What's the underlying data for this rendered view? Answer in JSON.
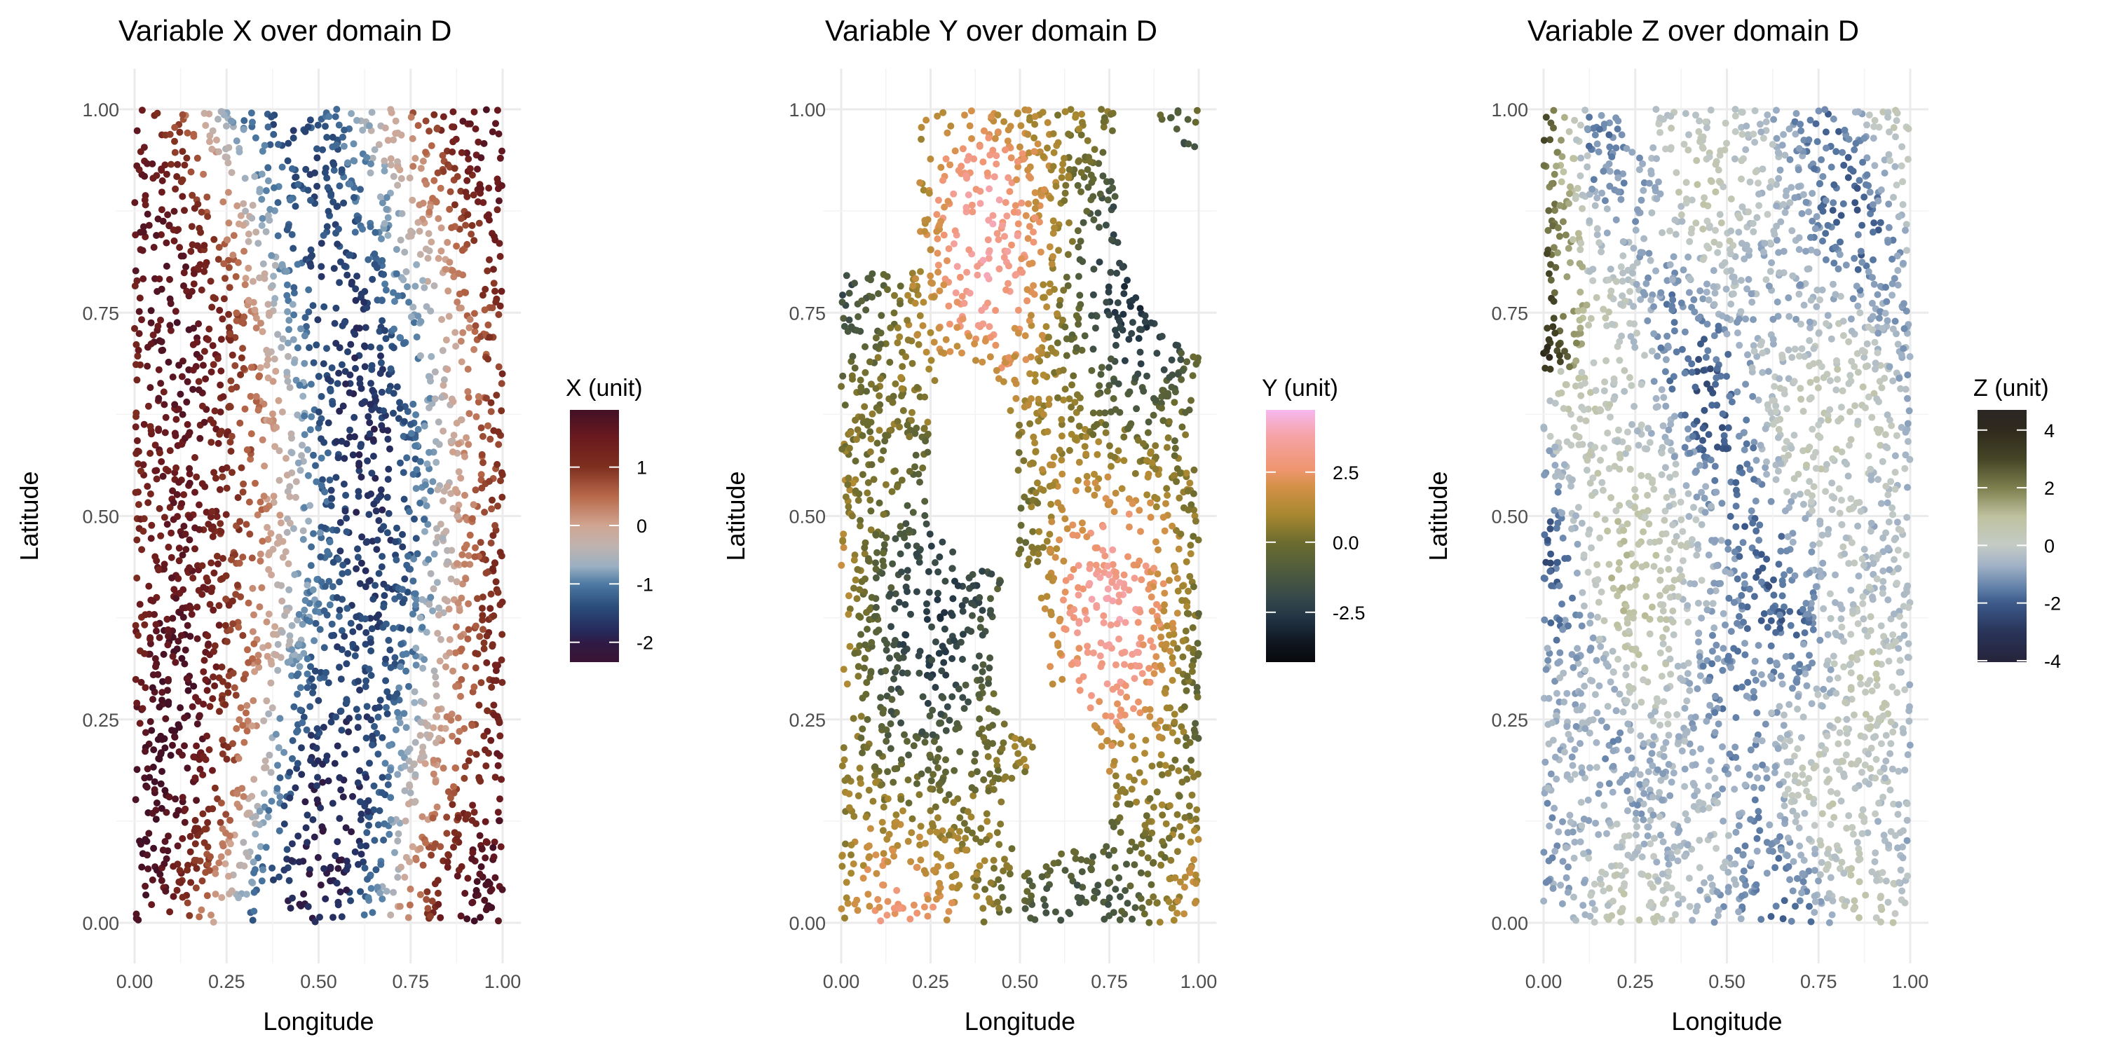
{
  "chart_data": [
    {
      "type": "scatter",
      "title": "Variable X over domain D",
      "xlabel": "Longitude",
      "ylabel": "Latitude",
      "xlim": [
        0,
        1
      ],
      "ylim": [
        0,
        1
      ],
      "x_ticks": [
        "0.00",
        "0.25",
        "0.50",
        "0.75",
        "1.00"
      ],
      "y_ticks": [
        "0.00",
        "0.25",
        "0.50",
        "0.75",
        "1.00"
      ],
      "grid": true,
      "legend": {
        "title": "X (unit)",
        "placement": "right",
        "range": [
          -2.34,
          1.98
        ],
        "ticks": [
          {
            "value": 1,
            "label": "1"
          },
          {
            "value": 0,
            "label": "0"
          },
          {
            "value": -1,
            "label": "-1"
          },
          {
            "value": -2,
            "label": "-2"
          }
        ],
        "color_stops": [
          {
            "value": 1.98,
            "color": "#421026"
          },
          {
            "value": 1.5,
            "color": "#6b1a1e"
          },
          {
            "value": 1.0,
            "color": "#7f2f1f"
          },
          {
            "value": 0.5,
            "color": "#b8694a"
          },
          {
            "value": 0.0,
            "color": "#d0a592"
          },
          {
            "value": -0.35,
            "color": "#c0b2ae"
          },
          {
            "value": -0.7,
            "color": "#9ab0c2"
          },
          {
            "value": -1.0,
            "color": "#4d7aa3"
          },
          {
            "value": -1.4,
            "color": "#2a4c7b"
          },
          {
            "value": -1.8,
            "color": "#252b5c"
          },
          {
            "value": -2.0,
            "color": "#2f1b45"
          },
          {
            "value": -2.34,
            "color": "#3a1435"
          }
        ]
      }
    },
    {
      "type": "scatter",
      "title": "Variable Y over domain D",
      "xlabel": "Longitude",
      "ylabel": "Latitude",
      "xlim": [
        0,
        1
      ],
      "ylim": [
        0,
        1
      ],
      "x_ticks": [
        "0.00",
        "0.25",
        "0.50",
        "0.75",
        "1.00"
      ],
      "y_ticks": [
        "0.00",
        "0.25",
        "0.50",
        "0.75",
        "1.00"
      ],
      "grid": true,
      "legend": {
        "title": "Y (unit)",
        "placement": "right",
        "range": [
          -4.28,
          4.72
        ],
        "ticks": [
          {
            "value": 2.5,
            "label": "2.5"
          },
          {
            "value": 0,
            "label": "0.0"
          },
          {
            "value": -2.5,
            "label": "-2.5"
          }
        ],
        "color_stops": [
          {
            "value": 4.72,
            "color": "#f7b8f0"
          },
          {
            "value": 3.8,
            "color": "#f5a3a6"
          },
          {
            "value": 2.6,
            "color": "#ef9570"
          },
          {
            "value": 2.0,
            "color": "#d49148"
          },
          {
            "value": 1.0,
            "color": "#a98830"
          },
          {
            "value": 0.0,
            "color": "#6d6c2f"
          },
          {
            "value": -1.0,
            "color": "#4f5c3d"
          },
          {
            "value": -2.0,
            "color": "#36484a"
          },
          {
            "value": -2.7,
            "color": "#223545"
          },
          {
            "value": -3.5,
            "color": "#101823"
          },
          {
            "value": -4.28,
            "color": "#07080c"
          }
        ]
      }
    },
    {
      "type": "scatter",
      "title": "Variable Z over domain D",
      "xlabel": "Longitude",
      "ylabel": "Latitude",
      "xlim": [
        0,
        1
      ],
      "ylim": [
        0,
        1
      ],
      "x_ticks": [
        "0.00",
        "0.25",
        "0.50",
        "0.75",
        "1.00"
      ],
      "y_ticks": [
        "0.00",
        "0.25",
        "0.50",
        "0.75",
        "1.00"
      ],
      "grid": true,
      "legend": {
        "title": "Z (unit)",
        "placement": "right",
        "range": [
          -4.05,
          4.7
        ],
        "ticks": [
          {
            "value": 4,
            "label": "4"
          },
          {
            "value": 2,
            "label": "2"
          },
          {
            "value": 0,
            "label": "0"
          },
          {
            "value": -2,
            "label": "-2"
          },
          {
            "value": -4,
            "label": "-4"
          }
        ],
        "color_stops": [
          {
            "value": 4.7,
            "color": "#2b2624"
          },
          {
            "value": 4.0,
            "color": "#2f2a1d"
          },
          {
            "value": 3.0,
            "color": "#454526"
          },
          {
            "value": 2.0,
            "color": "#7d7f4e"
          },
          {
            "value": 1.0,
            "color": "#bfc29f"
          },
          {
            "value": 0.0,
            "color": "#c4cbc6"
          },
          {
            "value": -0.7,
            "color": "#a1b2c6"
          },
          {
            "value": -1.5,
            "color": "#5f7ea7"
          },
          {
            "value": -2.0,
            "color": "#3c5a8a"
          },
          {
            "value": -3.0,
            "color": "#293459"
          },
          {
            "value": -4.05,
            "color": "#26233a"
          }
        ]
      }
    }
  ]
}
